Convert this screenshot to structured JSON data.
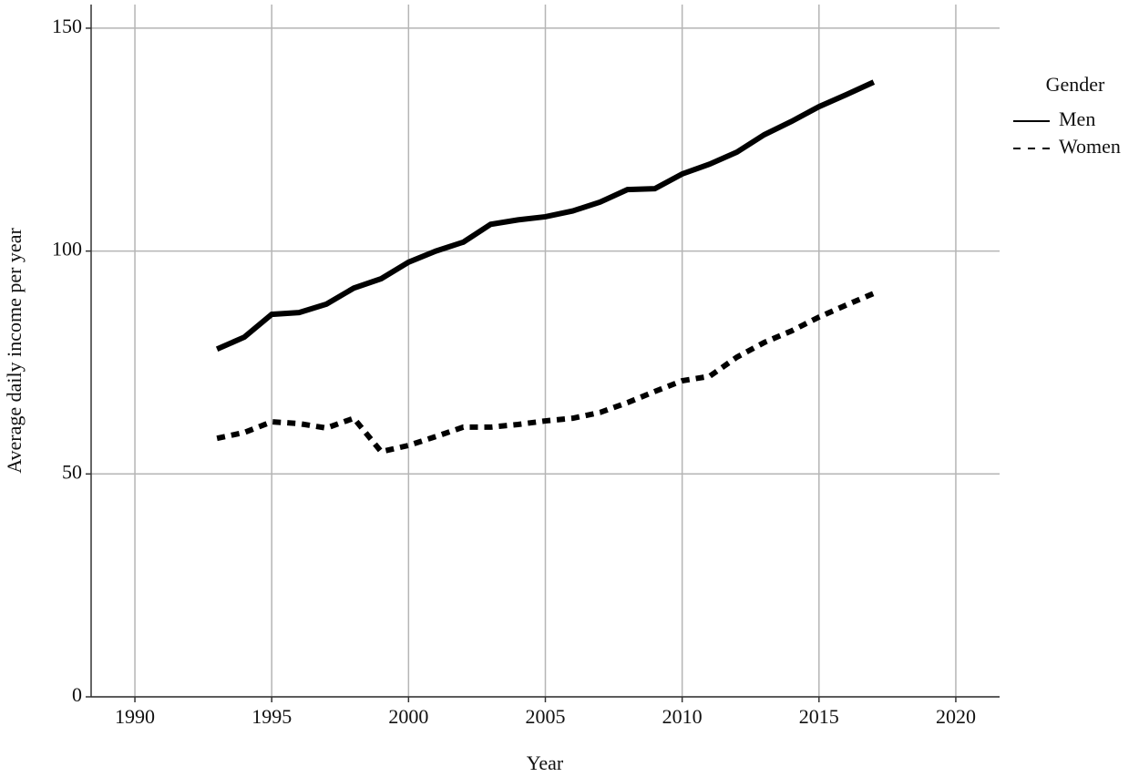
{
  "chart_data": {
    "type": "line",
    "x_label": "Year",
    "y_label": "Average daily income per year",
    "x": [
      1993,
      1994,
      1995,
      1996,
      1997,
      1998,
      1999,
      2000,
      2001,
      2002,
      2003,
      2004,
      2005,
      2006,
      2007,
      2008,
      2009,
      2010,
      2011,
      2012,
      2013,
      2014,
      2015,
      2016,
      2017
    ],
    "series": [
      {
        "name": "Men",
        "color": "#000000",
        "line_style": "solid",
        "values": [
          78.0,
          80.7,
          85.8,
          86.2,
          88.1,
          91.7,
          93.8,
          97.5,
          100.0,
          102.0,
          106.0,
          107.0,
          107.7,
          109.0,
          111.0,
          113.8,
          114.0,
          117.3,
          119.5,
          122.2,
          126.1,
          129.1,
          132.4,
          135.1,
          137.9
        ]
      },
      {
        "name": "Women",
        "color": "#000000",
        "line_style": "dashed",
        "values": [
          58.0,
          59.3,
          61.7,
          61.3,
          60.3,
          62.5,
          55.0,
          56.4,
          58.4,
          60.5,
          60.5,
          61.1,
          61.9,
          62.5,
          63.8,
          66.0,
          68.5,
          70.9,
          71.9,
          76.2,
          79.5,
          82.1,
          85.2,
          87.9,
          90.5
        ]
      }
    ],
    "legend_title": "Gender",
    "legend": "right",
    "xlim": [
      1988.4,
      2021.6
    ],
    "xticks": [
      1990,
      1995,
      2000,
      2005,
      2010,
      2015,
      2020
    ],
    "ylim": [
      0,
      155.3
    ],
    "yticks": [
      0,
      50,
      100,
      150
    ],
    "grid": true
  }
}
